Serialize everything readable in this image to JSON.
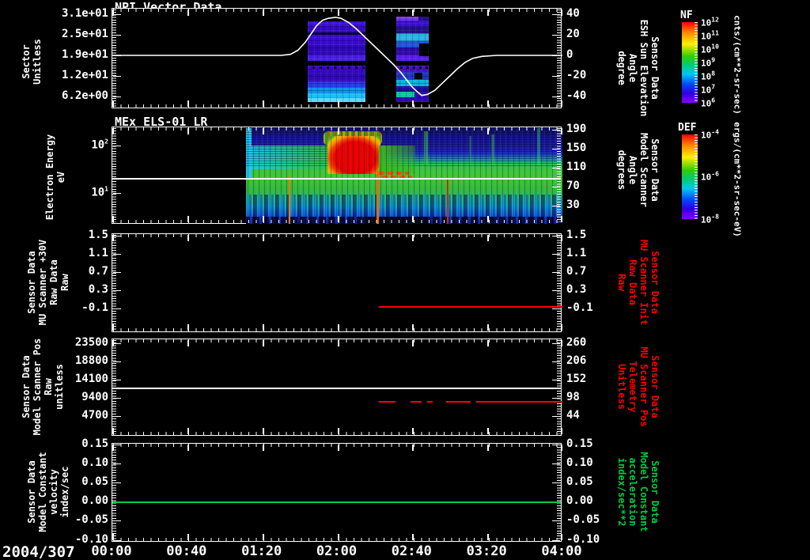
{
  "window": {
    "background": "#000000",
    "date_label": "2004/307"
  },
  "x_axis": {
    "tick_labels": [
      "00:00",
      "00:40",
      "01:20",
      "02:00",
      "02:40",
      "03:20",
      "04:00"
    ]
  },
  "panels": [
    {
      "title": "NPI Vector Data",
      "left_label_lines": [
        "Sector",
        "Unitless"
      ],
      "left_tick_labels": [
        "3.1e+01",
        "2.5e+01",
        "1.9e+01",
        "1.2e+01",
        "6.2e+00"
      ],
      "right_tick_labels": [
        "40",
        "20",
        "0",
        "-20",
        "-40"
      ],
      "right_label_lines": [
        "Sensor Data",
        "ESH Sun Elevation",
        "Angle",
        "degree"
      ],
      "right_label_color": "#ffffff"
    },
    {
      "title": "MEx ELS-01 LR",
      "left_label_lines": [
        "Electron Energy",
        "eV"
      ],
      "left_tick_labels": [
        "10^2",
        "10^1"
      ],
      "right_tick_labels": [
        "190",
        "150",
        "110",
        "70",
        "30"
      ],
      "right_label_lines": [
        "Sensor Data",
        "Model Scanner",
        "Angle",
        "degrees"
      ],
      "right_label_color": "#ffffff"
    },
    {
      "title": "",
      "left_label_lines": [
        "Sensor Data",
        "MU Scanner +30V",
        "Raw Data",
        "Raw"
      ],
      "left_tick_labels": [
        "1.5",
        "1.1",
        "0.7",
        "0.3",
        "-0.1"
      ],
      "right_tick_labels": [
        "1.5",
        "1.1",
        "0.7",
        "0.3",
        "-0.1"
      ],
      "right_label_lines": [
        "Sensor Data",
        "MU Scanner Init",
        "Raw Data",
        "Raw"
      ],
      "right_label_color": "#ff0000"
    },
    {
      "title": "",
      "left_label_lines": [
        "Sensor Data",
        "Model Scanner Pos",
        "Raw",
        "unitless"
      ],
      "left_tick_labels": [
        "23500",
        "18800",
        "14100",
        "9400",
        "4700"
      ],
      "right_tick_labels": [
        "260",
        "206",
        "152",
        "98",
        "44"
      ],
      "right_label_lines": [
        "Sensor Data",
        "MU Scanner Pos",
        "Telemetry",
        "Unitless"
      ],
      "right_label_color": "#ff0000"
    },
    {
      "title": "",
      "left_label_lines": [
        "Sensor Data",
        "Model Constant",
        "velocity",
        "index/sec"
      ],
      "left_tick_labels": [
        "0.15",
        "0.10",
        "0.05",
        "0.00",
        "-0.05",
        "-0.10"
      ],
      "right_tick_labels": [
        "0.15",
        "0.10",
        "0.05",
        "0.00",
        "-0.05",
        "-0.10"
      ],
      "right_label_lines": [
        "Sensor Data",
        "Model Constant",
        "acceleration",
        "index/sec**2"
      ],
      "right_label_color": "#00cc44"
    }
  ],
  "colorbars": [
    {
      "title": "NF",
      "tick_labels": [
        "10^12",
        "10^11",
        "10^10",
        "10^9",
        "10^8",
        "10^7",
        "10^6"
      ],
      "unit": "cnts/(cm**2-sr-sec)"
    },
    {
      "title": "DEF",
      "tick_labels": [
        "10^-4",
        "10^-6",
        "10^-8"
      ],
      "unit": "ergs/(cm**2-sr-sec-eV)"
    }
  ],
  "chart_data": [
    {
      "type": "heatmap",
      "panel": 1,
      "title": "NPI Vector Data",
      "ylabel": "Sector Unitless",
      "yticks": [
        31,
        25,
        19,
        12,
        6.2
      ],
      "colorbar": "NF",
      "units": "cnts/(cm**2-sr-sec)",
      "color_range_log10": [
        6,
        12
      ],
      "coverage_blocks": [
        {
          "start": "01:44",
          "end": "02:15",
          "level": "low flux, blue-indigo, cyan rows at bottom sectors"
        },
        {
          "start": "02:31",
          "end": "02:49",
          "level": "low flux, blue-indigo with cyan bands and black dropouts"
        }
      ]
    },
    {
      "type": "line",
      "panel": 1,
      "name": "ESH Sun Elevation Angle",
      "axis": "right",
      "units": "degree",
      "color": "#ffffff",
      "ylim": [
        -50,
        40
      ],
      "x_minutes": [
        0,
        90,
        95,
        99,
        103,
        106,
        109,
        112,
        115,
        119,
        122,
        126,
        130,
        134,
        138,
        142,
        146,
        150,
        154,
        157,
        160,
        163,
        165,
        168,
        172,
        176,
        180,
        184,
        188,
        192,
        197,
        205,
        240
      ],
      "values": [
        0,
        0,
        1,
        5,
        13,
        21,
        29,
        34,
        36,
        37,
        36,
        32,
        26,
        19,
        12,
        5,
        -2,
        -9,
        -17,
        -24,
        -31,
        -36,
        -39,
        -38,
        -34,
        -27,
        -20,
        -13,
        -7,
        -3,
        -1,
        0,
        0
      ]
    },
    {
      "type": "heatmap",
      "panel": 2,
      "title": "MEx ELS-01 LR",
      "ylabel": "Electron Energy eV",
      "yscale": "log",
      "yrange_eV": [
        4,
        300
      ],
      "colorbar": "DEF",
      "units": "ergs/(cm**2-sr-sec-eV)",
      "color_range_log10": [
        -8,
        -4
      ],
      "coverage": {
        "start": "01:11",
        "end": "04:00"
      },
      "overlay_line_eV": 20,
      "features": [
        "broad cyan-green flux at all energies from 01:11 onward",
        "intense red flux 30-120 eV between 01:55 and 02:21",
        "orange dashed enhancement near 15-20 eV 02:22-02:35",
        "vertical orange spikes near 01:35, 02:21 and 02:59",
        "dark-blue speckled region above ~100 eV",
        "blue/dark striped band below ~7 eV"
      ]
    },
    {
      "type": "line",
      "panel": 3,
      "name": "MU Scanner Init Raw Data",
      "color": "#ff0000",
      "segments": [
        {
          "start": "02:22",
          "end": "04:00",
          "value": 0.0
        }
      ]
    },
    {
      "type": "line",
      "panel": 4,
      "name": "Model Scanner Pos Raw",
      "color": "#ffffff",
      "segments": [
        {
          "start": "00:00",
          "end": "04:00",
          "value": 11800
        }
      ]
    },
    {
      "type": "line",
      "panel": 4,
      "name": "MU Scanner Pos Telemetry",
      "color": "#ff0000",
      "style": "dashed",
      "value": 84,
      "dash_segments": [
        [
          "02:22",
          "02:31"
        ],
        [
          "02:39",
          "02:45"
        ],
        [
          "02:48",
          "02:51"
        ],
        [
          "02:58",
          "03:11"
        ],
        [
          "03:14",
          "04:00"
        ]
      ]
    },
    {
      "type": "line",
      "panel": 5,
      "name": "Model Constant velocity",
      "color": "#00cc44",
      "segments": [
        {
          "start": "00:00",
          "end": "04:00",
          "value": 0.0
        }
      ]
    }
  ]
}
